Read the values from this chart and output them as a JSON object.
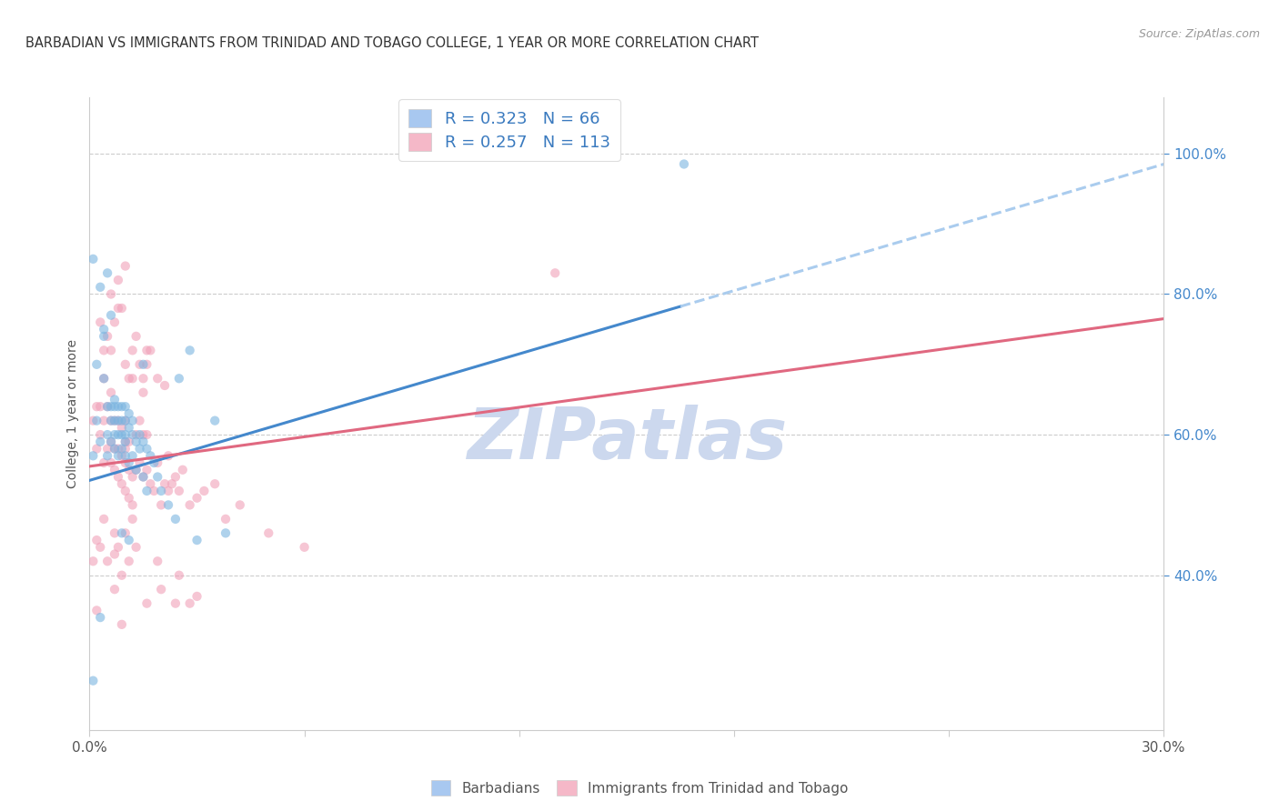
{
  "title": "BARBADIAN VS IMMIGRANTS FROM TRINIDAD AND TOBAGO COLLEGE, 1 YEAR OR MORE CORRELATION CHART",
  "source": "Source: ZipAtlas.com",
  "ylabel": "College, 1 year or more",
  "x_min": 0.0,
  "x_max": 0.3,
  "y_min": 0.18,
  "y_max": 1.08,
  "right_y_ticks": [
    0.4,
    0.6,
    0.8,
    1.0
  ],
  "right_y_labels": [
    "40.0%",
    "60.0%",
    "80.0%",
    "100.0%"
  ],
  "legend_line1": "R = 0.323   N = 66",
  "legend_line2": "R = 0.257   N = 113",
  "legend_color1": "#a8c8f0",
  "legend_color2": "#f5b8c8",
  "blue_scatter_color": "#7ab4e0",
  "pink_scatter_color": "#f0a0b8",
  "scatter_alpha": 0.6,
  "scatter_size": 55,
  "blue_line_color": "#4488cc",
  "blue_line_solid_end_x": 0.165,
  "blue_line_x0": 0.0,
  "blue_line_y0": 0.535,
  "blue_line_x1": 0.3,
  "blue_line_y1": 0.985,
  "blue_dash_color": "#aaccee",
  "pink_line_color": "#e06880",
  "pink_line_x0": 0.0,
  "pink_line_y0": 0.555,
  "pink_line_x1": 0.3,
  "pink_line_y1": 0.765,
  "watermark": "ZIPatlas",
  "watermark_color": "#ccd8ee",
  "grid_color": "#cccccc",
  "right_tick_color": "#4488cc",
  "background_color": "#ffffff",
  "barbadians_x": [
    0.001,
    0.001,
    0.002,
    0.003,
    0.004,
    0.004,
    0.005,
    0.005,
    0.005,
    0.006,
    0.006,
    0.006,
    0.007,
    0.007,
    0.007,
    0.007,
    0.008,
    0.008,
    0.008,
    0.008,
    0.009,
    0.009,
    0.009,
    0.009,
    0.01,
    0.01,
    0.01,
    0.01,
    0.01,
    0.011,
    0.011,
    0.011,
    0.012,
    0.012,
    0.012,
    0.013,
    0.013,
    0.014,
    0.014,
    0.015,
    0.015,
    0.016,
    0.016,
    0.017,
    0.018,
    0.019,
    0.02,
    0.022,
    0.024,
    0.025,
    0.028,
    0.03,
    0.035,
    0.038,
    0.166,
    0.001,
    0.002,
    0.003,
    0.004,
    0.005,
    0.006,
    0.007,
    0.009,
    0.011,
    0.015,
    0.003
  ],
  "barbadians_y": [
    0.25,
    0.57,
    0.62,
    0.59,
    0.68,
    0.74,
    0.6,
    0.64,
    0.57,
    0.62,
    0.64,
    0.59,
    0.6,
    0.62,
    0.64,
    0.58,
    0.6,
    0.62,
    0.64,
    0.57,
    0.6,
    0.62,
    0.64,
    0.58,
    0.6,
    0.62,
    0.64,
    0.57,
    0.59,
    0.61,
    0.63,
    0.56,
    0.6,
    0.62,
    0.57,
    0.59,
    0.55,
    0.58,
    0.6,
    0.54,
    0.59,
    0.52,
    0.58,
    0.57,
    0.56,
    0.54,
    0.52,
    0.5,
    0.48,
    0.68,
    0.72,
    0.45,
    0.62,
    0.46,
    0.985,
    0.85,
    0.7,
    0.81,
    0.75,
    0.83,
    0.77,
    0.65,
    0.46,
    0.45,
    0.7,
    0.34
  ],
  "trinidad_x": [
    0.001,
    0.002,
    0.003,
    0.003,
    0.004,
    0.004,
    0.005,
    0.005,
    0.006,
    0.006,
    0.006,
    0.006,
    0.007,
    0.007,
    0.007,
    0.008,
    0.008,
    0.008,
    0.009,
    0.009,
    0.009,
    0.01,
    0.01,
    0.01,
    0.01,
    0.011,
    0.011,
    0.011,
    0.012,
    0.012,
    0.013,
    0.013,
    0.014,
    0.014,
    0.015,
    0.015,
    0.016,
    0.016,
    0.017,
    0.018,
    0.019,
    0.02,
    0.021,
    0.022,
    0.022,
    0.023,
    0.024,
    0.025,
    0.026,
    0.028,
    0.03,
    0.032,
    0.035,
    0.038,
    0.042,
    0.05,
    0.06,
    0.13,
    0.003,
    0.004,
    0.005,
    0.006,
    0.007,
    0.008,
    0.009,
    0.01,
    0.011,
    0.012,
    0.013,
    0.014,
    0.015,
    0.016,
    0.017,
    0.019,
    0.021,
    0.001,
    0.002,
    0.003,
    0.004,
    0.005,
    0.007,
    0.008,
    0.01,
    0.012,
    0.007,
    0.009,
    0.011,
    0.013,
    0.016,
    0.02,
    0.025,
    0.03,
    0.002,
    0.004,
    0.006,
    0.01,
    0.015,
    0.002,
    0.007,
    0.009,
    0.024,
    0.028,
    0.016,
    0.012,
    0.019,
    0.008,
    0.01
  ],
  "trinidad_y": [
    0.62,
    0.58,
    0.6,
    0.64,
    0.56,
    0.62,
    0.58,
    0.64,
    0.56,
    0.59,
    0.62,
    0.66,
    0.55,
    0.58,
    0.62,
    0.54,
    0.58,
    0.62,
    0.53,
    0.57,
    0.61,
    0.52,
    0.56,
    0.59,
    0.62,
    0.51,
    0.55,
    0.59,
    0.5,
    0.54,
    0.55,
    0.6,
    0.56,
    0.62,
    0.54,
    0.6,
    0.55,
    0.6,
    0.53,
    0.52,
    0.56,
    0.5,
    0.53,
    0.52,
    0.57,
    0.53,
    0.54,
    0.52,
    0.55,
    0.5,
    0.51,
    0.52,
    0.53,
    0.48,
    0.5,
    0.46,
    0.44,
    0.83,
    0.76,
    0.72,
    0.74,
    0.8,
    0.76,
    0.82,
    0.78,
    0.84,
    0.68,
    0.72,
    0.74,
    0.7,
    0.66,
    0.7,
    0.72,
    0.68,
    0.67,
    0.42,
    0.45,
    0.44,
    0.48,
    0.42,
    0.46,
    0.44,
    0.46,
    0.48,
    0.38,
    0.4,
    0.42,
    0.44,
    0.36,
    0.38,
    0.4,
    0.37,
    0.64,
    0.68,
    0.72,
    0.7,
    0.68,
    0.35,
    0.43,
    0.33,
    0.36,
    0.36,
    0.72,
    0.68,
    0.42,
    0.78,
    0.58
  ]
}
